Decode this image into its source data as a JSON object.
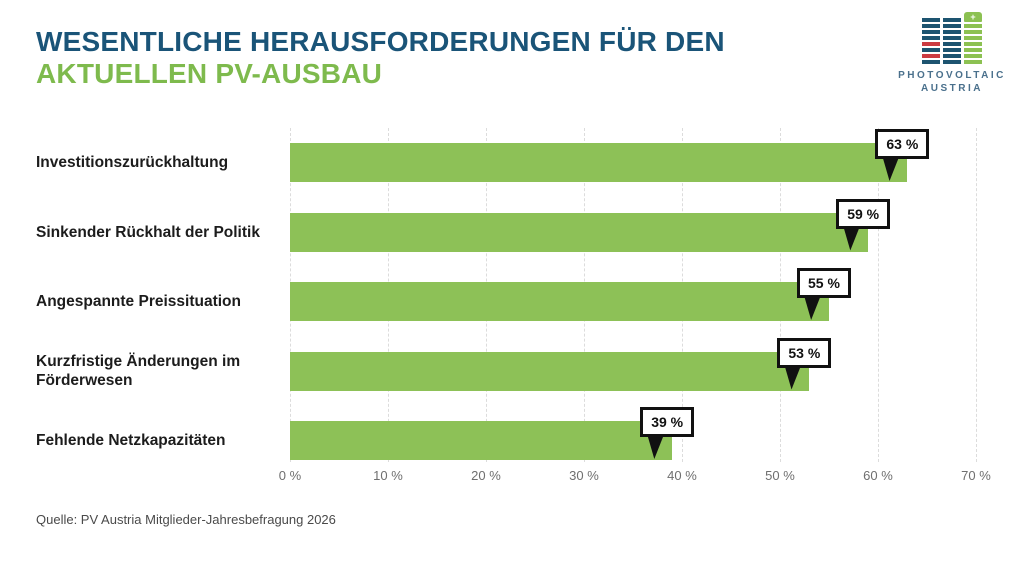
{
  "header": {
    "title_line1": "WESENTLICHE HERAUSFORDERUNGEN FÜR DEN",
    "title_line2": "AKTUELLEN PV-AUSBAU",
    "title_color_line1": "#1a5478",
    "title_color_line2": "#7eba4d"
  },
  "logo": {
    "line1": "PHOTOVOLTAIC",
    "line2": "AUSTRIA",
    "colors": {
      "blue": "#1d5470",
      "red": "#cc3b41",
      "green": "#8cc152",
      "text": "#4a708c"
    },
    "columns": [
      {
        "stripes": [
          "blue",
          "blue",
          "blue",
          "blue",
          "red",
          "blue",
          "red",
          "blue"
        ],
        "cap": false
      },
      {
        "stripes": [
          "blue",
          "blue",
          "blue",
          "blue",
          "blue",
          "blue",
          "blue",
          "blue"
        ],
        "cap": false
      },
      {
        "stripes": [
          "green",
          "green",
          "green",
          "green",
          "green",
          "green",
          "green"
        ],
        "cap": true,
        "cap_symbol": "+"
      }
    ]
  },
  "chart_data": {
    "type": "bar",
    "orientation": "horizontal",
    "categories": [
      "Investitionszurückhaltung",
      "Sinkender Rückhalt der Politik",
      "Angespannte Preissituation",
      "Kurzfristige Änderungen im Förderwesen",
      "Fehlende Netzkapazitäten"
    ],
    "values": [
      63,
      59,
      55,
      53,
      39
    ],
    "value_labels": [
      "63 %",
      "59 %",
      "55 %",
      "53 %",
      "39 %"
    ],
    "xlim": [
      0,
      70
    ],
    "x_tick_values": [
      0,
      10,
      20,
      30,
      40,
      50,
      60,
      70
    ],
    "x_tick_labels": [
      "0 %",
      "10 %",
      "20 %",
      "30 %",
      "40 %",
      "50 %",
      "60 %",
      "70 %"
    ],
    "bar_color": "#8dc157",
    "grid": "vertical-dashed",
    "legend": "none",
    "title": "",
    "xlabel": "",
    "ylabel": ""
  },
  "source": "Quelle: PV Austria Mitglieder-Jahresbefragung 2026"
}
